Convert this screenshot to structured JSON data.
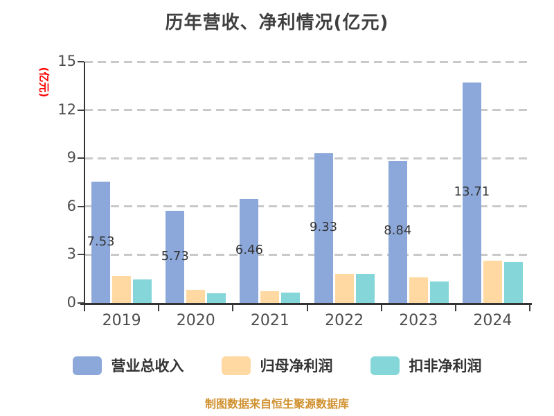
{
  "title": "历年营收、净利情况(亿元)",
  "chart_data": {
    "type": "bar",
    "title": "历年营收、净利情况(亿元)",
    "ylabel": "(亿元)",
    "xlabel": "",
    "categories": [
      "2019",
      "2020",
      "2021",
      "2022",
      "2023",
      "2024"
    ],
    "series": [
      {
        "key": "total-revenue",
        "name": "营业总收入",
        "color": "#8ca8da",
        "values": [
          7.53,
          5.73,
          6.46,
          9.33,
          8.84,
          13.71
        ],
        "labels": [
          "7.53",
          "5.73",
          "6.46",
          "9.33",
          "8.84",
          "13.71"
        ]
      },
      {
        "key": "net-profit",
        "name": "归母净利润",
        "color": "#ffd9a1",
        "values": [
          1.7,
          0.81,
          0.74,
          1.79,
          1.58,
          2.61
        ]
      },
      {
        "key": "non-gaap-net-profit",
        "name": "扣非净利润",
        "color": "#85d6d8",
        "values": [
          1.46,
          0.6,
          0.64,
          1.79,
          1.35,
          2.53
        ]
      }
    ],
    "ylim": [
      0,
      15
    ],
    "yticks": [
      0,
      3,
      6,
      9,
      12,
      15
    ],
    "grid": "horizontal dashed gray",
    "legend_position": "bottom"
  },
  "colors": {
    "title_text": "#3f3f3f",
    "axis": "#333333",
    "tick_text": "#4d4d4d",
    "gridline": "#c9c9c9",
    "y_axis_label_red": "#ff0000",
    "footer_orange": "#d0912f"
  },
  "footer": {
    "text": "制图数据来自恒生聚源数据库",
    "color": "#d0912f"
  }
}
